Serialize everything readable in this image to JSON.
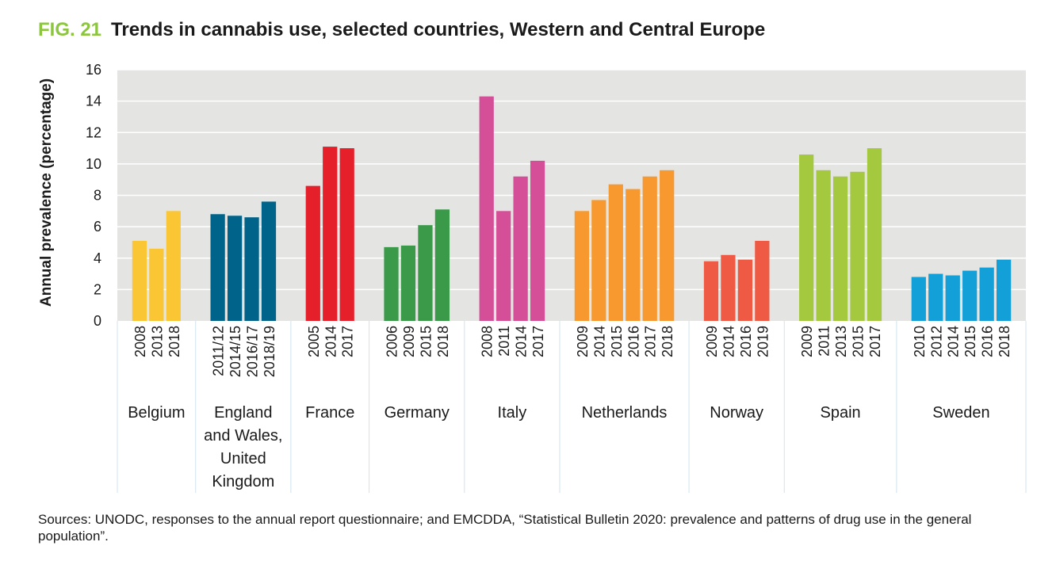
{
  "figure_label": "FIG. 21",
  "title": "Trends in cannabis use, selected countries, Western and Central Europe",
  "sources": "Sources: UNODC, responses to the annual report questionnaire; and EMCDDA, “Statistical Bulletin 2020: prevalence and patterns of drug use in the general population”.",
  "colors": {
    "plot_background": "#e4e4e2",
    "gridline": "#ffffff",
    "separator": "#cfe3ef"
  },
  "chart_data": {
    "type": "bar",
    "title": "Trends in cannabis use, selected countries, Western and Central Europe",
    "xlabel": "",
    "ylabel": "Annual prevalence (percentage)",
    "ylim": [
      0,
      16
    ],
    "yticks": [
      0,
      2,
      4,
      6,
      8,
      10,
      12,
      14,
      16
    ],
    "grid": true,
    "groups": [
      {
        "name": "Belgium",
        "label_lines": [
          "Belgium"
        ],
        "color": "#fbc634",
        "categories": [
          "2008",
          "2013",
          "2018"
        ],
        "values": [
          5.1,
          4.6,
          7.0
        ]
      },
      {
        "name": "England and Wales, United Kingdom",
        "label_lines": [
          "England",
          "and Wales,",
          "United",
          "Kingdom"
        ],
        "color": "#00648a",
        "categories": [
          "2011/12",
          "2014/15",
          "2016/17",
          "2018/19"
        ],
        "values": [
          6.8,
          6.7,
          6.6,
          7.6
        ]
      },
      {
        "name": "France",
        "label_lines": [
          "France"
        ],
        "color": "#e5202a",
        "categories": [
          "2005",
          "2014",
          "2017"
        ],
        "values": [
          8.6,
          11.1,
          11.0
        ]
      },
      {
        "name": "Germany",
        "label_lines": [
          "Germany"
        ],
        "color": "#3a9a4a",
        "categories": [
          "2006",
          "2009",
          "2015",
          "2018"
        ],
        "values": [
          4.7,
          4.8,
          6.1,
          7.1
        ]
      },
      {
        "name": "Italy",
        "label_lines": [
          "Italy"
        ],
        "color": "#d54e98",
        "categories": [
          "2008",
          "2011",
          "2014",
          "2017"
        ],
        "values": [
          14.3,
          7.0,
          9.2,
          10.2
        ]
      },
      {
        "name": "Netherlands",
        "label_lines": [
          "Netherlands"
        ],
        "color": "#f7992f",
        "categories": [
          "2009",
          "2014",
          "2015",
          "2016",
          "2017",
          "2018"
        ],
        "values": [
          7.0,
          7.7,
          8.7,
          8.4,
          9.2,
          9.6
        ]
      },
      {
        "name": "Norway",
        "label_lines": [
          "Norway"
        ],
        "color": "#ef5a45",
        "categories": [
          "2009",
          "2014",
          "2016",
          "2019"
        ],
        "values": [
          3.8,
          4.2,
          3.9,
          5.1
        ]
      },
      {
        "name": "Spain",
        "label_lines": [
          "Spain"
        ],
        "color": "#a4c93e",
        "categories": [
          "2009",
          "2011",
          "2013",
          "2015",
          "2017"
        ],
        "values": [
          10.6,
          9.6,
          9.2,
          9.5,
          11.0
        ]
      },
      {
        "name": "Sweden",
        "label_lines": [
          "Sweden"
        ],
        "color": "#139fd8",
        "categories": [
          "2010",
          "2012",
          "2014",
          "2015",
          "2016",
          "2018"
        ],
        "values": [
          2.8,
          3.0,
          2.9,
          3.2,
          3.4,
          3.9
        ]
      }
    ]
  }
}
